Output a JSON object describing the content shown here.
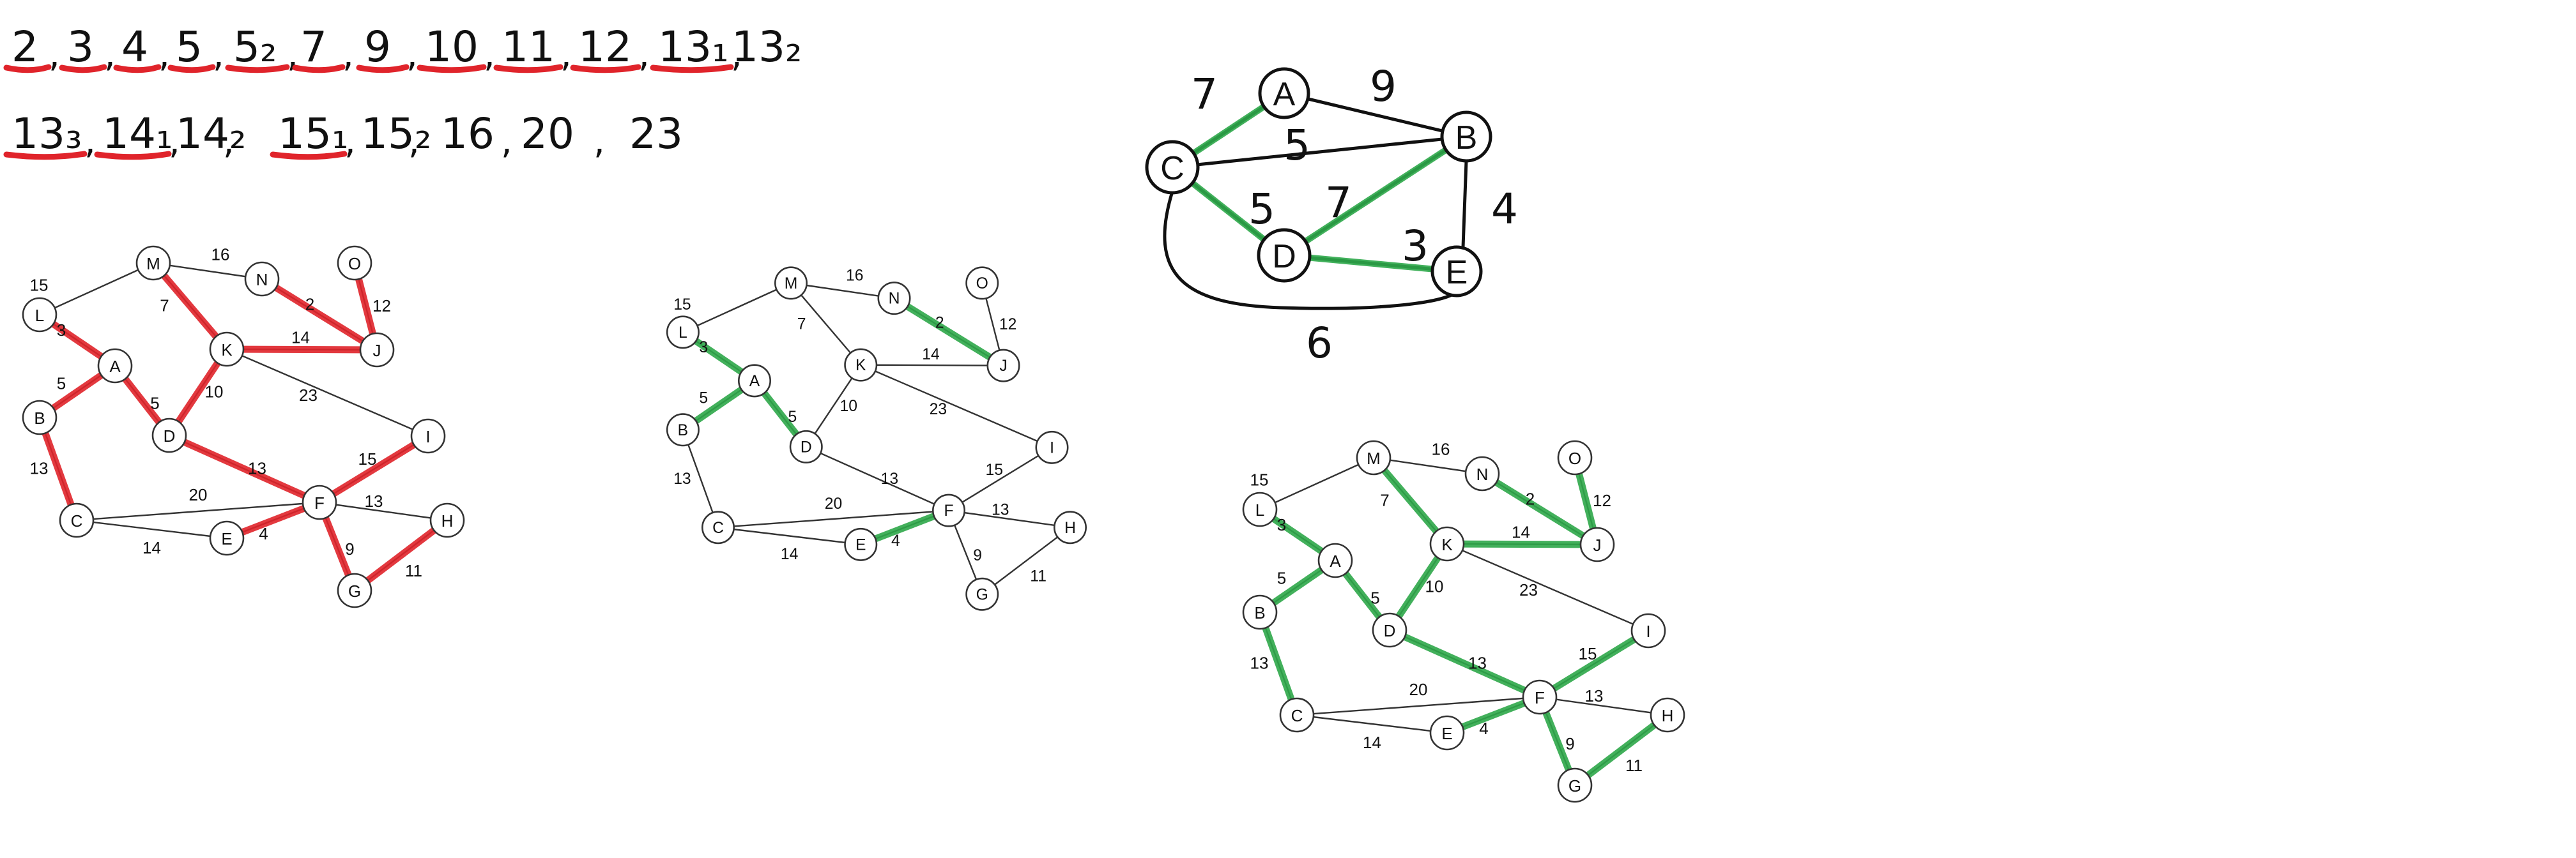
{
  "colors": {
    "red": "#e0242b",
    "green": "#2ea84a",
    "ink": "#111111"
  },
  "sorted_weights": [
    {
      "text": "2",
      "mark": "red"
    },
    {
      "text": "3",
      "mark": "red"
    },
    {
      "text": "4",
      "mark": "red"
    },
    {
      "text": "5",
      "mark": "red"
    },
    {
      "text": "5₂",
      "mark": "red"
    },
    {
      "text": "7",
      "mark": "red"
    },
    {
      "text": "9",
      "mark": "red"
    },
    {
      "text": "10",
      "mark": "red"
    },
    {
      "text": "11",
      "mark": "red"
    },
    {
      "text": "12",
      "mark": "red"
    },
    {
      "text": "13₁",
      "mark": "red"
    },
    {
      "text": "13₂",
      "mark": "none"
    },
    {
      "text": "13₃",
      "mark": "red"
    },
    {
      "text": "14₁",
      "mark": "red"
    },
    {
      "text": "14₂",
      "mark": "none"
    },
    {
      "text": "15₁",
      "mark": "red"
    },
    {
      "text": "15₂",
      "mark": "none"
    },
    {
      "text": "16",
      "mark": "none"
    },
    {
      "text": "20",
      "mark": "none"
    },
    {
      "text": "23",
      "mark": "none"
    }
  ],
  "sketch_graph": {
    "nodes": [
      "A",
      "B",
      "C",
      "D",
      "E"
    ],
    "edges": [
      {
        "from": "C",
        "to": "A",
        "weight": "7",
        "mst": true
      },
      {
        "from": "A",
        "to": "B",
        "weight": "9",
        "mst": false
      },
      {
        "from": "C",
        "to": "B",
        "weight": "5",
        "mst": false
      },
      {
        "from": "B",
        "to": "E",
        "weight": "4",
        "mst": false
      },
      {
        "from": "C",
        "to": "D",
        "weight": "5",
        "mst": true
      },
      {
        "from": "D",
        "to": "B",
        "weight": "7",
        "mst": true
      },
      {
        "from": "D",
        "to": "E",
        "weight": "3",
        "mst": true
      },
      {
        "from": "C",
        "to": "E",
        "weight": "6",
        "mst": false
      }
    ]
  },
  "graphs": [
    {
      "id": "kruskal-red",
      "highlight": "red",
      "highlighted": [
        "L-A",
        "A-B",
        "A-D",
        "B-C",
        "M-K",
        "N-J",
        "O-J",
        "K-J",
        "K-D",
        "D-F",
        "F-I",
        "E-F",
        "F-G",
        "G-H"
      ]
    },
    {
      "id": "kruskal-partial-green",
      "highlight": "green",
      "highlighted": [
        "L-A",
        "A-B",
        "A-D",
        "N-J",
        "E-F"
      ]
    },
    {
      "id": "kruskal-green-final",
      "highlight": "green",
      "highlighted": [
        "L-A",
        "A-B",
        "A-D",
        "B-C",
        "M-K",
        "N-J",
        "O-J",
        "K-J",
        "K-D",
        "D-F",
        "F-I",
        "E-F",
        "F-G",
        "G-H"
      ]
    }
  ],
  "graph_nodes": [
    "A",
    "B",
    "C",
    "D",
    "E",
    "F",
    "G",
    "H",
    "I",
    "J",
    "K",
    "L",
    "M",
    "N",
    "O"
  ],
  "graph_edges": [
    {
      "id": "L-M",
      "weight": "15"
    },
    {
      "id": "M-N",
      "weight": "16"
    },
    {
      "id": "M-K",
      "weight": "7"
    },
    {
      "id": "N-J",
      "weight": "2"
    },
    {
      "id": "O-J",
      "weight": "12"
    },
    {
      "id": "L-A",
      "weight": "3"
    },
    {
      "id": "K-J",
      "weight": "14"
    },
    {
      "id": "A-B",
      "weight": "5"
    },
    {
      "id": "A-D",
      "weight": "5"
    },
    {
      "id": "K-D",
      "weight": "10"
    },
    {
      "id": "K-I",
      "weight": "23"
    },
    {
      "id": "D-F",
      "weight": "13"
    },
    {
      "id": "F-I",
      "weight": "15"
    },
    {
      "id": "B-C",
      "weight": "13"
    },
    {
      "id": "C-F",
      "weight": "20"
    },
    {
      "id": "F-H",
      "weight": "13"
    },
    {
      "id": "C-E",
      "weight": "14"
    },
    {
      "id": "E-F",
      "weight": "4"
    },
    {
      "id": "F-G",
      "weight": "9"
    },
    {
      "id": "G-H",
      "weight": "11"
    }
  ]
}
